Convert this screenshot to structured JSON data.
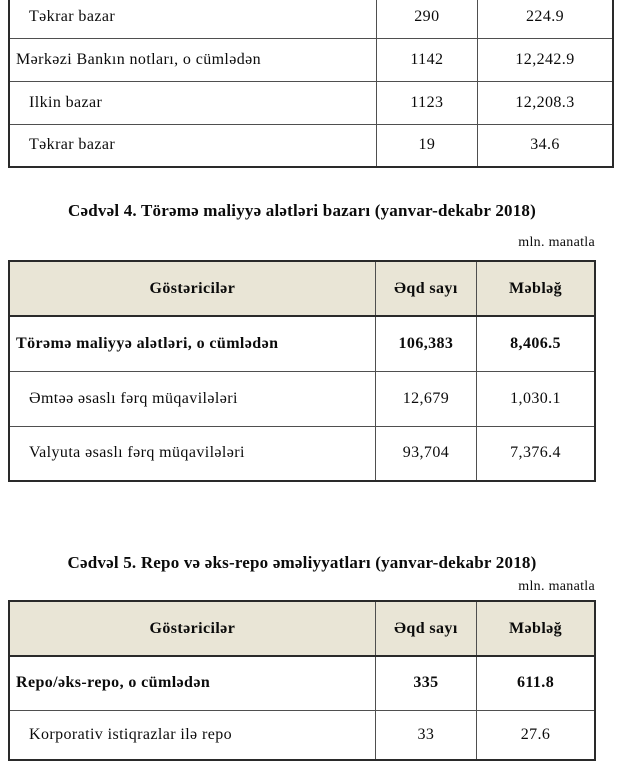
{
  "colors": {
    "page_bg": "#ffffff",
    "text": "#0b0b0b",
    "header_bg": "#e9e5d6",
    "border_outer": "#2a2a2a",
    "border_inner": "#4f4f4f"
  },
  "table_top": {
    "rows": [
      {
        "label": "Təkrar bazar",
        "count": "290",
        "amount": "224.9"
      },
      {
        "label": "Mərkəzi Bankın notları, o cümlədən",
        "count": "1142",
        "amount": "12,242.9"
      },
      {
        "label": "Ilkin bazar",
        "count": "1123",
        "amount": "12,208.3"
      },
      {
        "label": "Təkrar bazar",
        "count": "19",
        "amount": "34.6"
      }
    ]
  },
  "table4": {
    "title": "Cədvəl 4. Törəmə maliyyə alətləri bazarı (yanvar-dekabr 2018)",
    "unit_note": "mln. manatla",
    "headers": {
      "indicator": "Göstəricilər",
      "count": "Əqd sayı",
      "amount": "Məbləğ"
    },
    "rows": [
      {
        "label": "Törəmə maliyyə alətləri, o cümlədən",
        "count": "106,383",
        "amount": "8,406.5"
      },
      {
        "label": "Əmtəə əsaslı fərq müqavilələri",
        "count": "12,679",
        "amount": "1,030.1"
      },
      {
        "label": "Valyuta əsaslı fərq müqavilələri",
        "count": "93,704",
        "amount": "7,376.4"
      }
    ]
  },
  "table5": {
    "title": "Cədvəl 5. Repo və əks-repo əməliyyatları (yanvar-dekabr 2018)",
    "unit_note": "mln. manatla",
    "headers": {
      "indicator": "Göstəricilər",
      "count": "Əqd sayı",
      "amount": "Məbləğ"
    },
    "rows": [
      {
        "label": "Repo/əks-repo, o cümlədən",
        "count": "335",
        "amount": "611.8"
      },
      {
        "label": "Korporativ istiqrazlar ilə repo",
        "count": "33",
        "amount": "27.6"
      }
    ]
  }
}
